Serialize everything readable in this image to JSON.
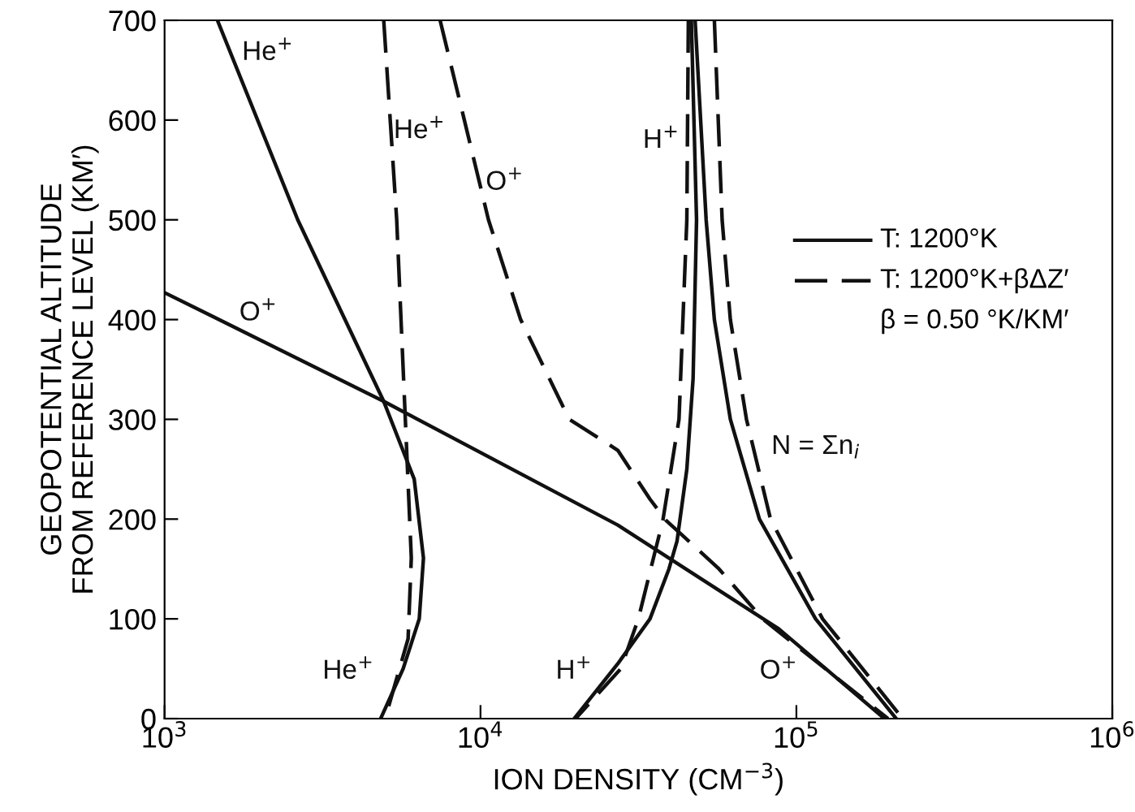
{
  "chart_data": {
    "type": "line",
    "xlabel": "ION DENSITY (CM$^{−3}$)",
    "ylabel": "GEOPOTENTIAL ALTITUDE\nFROM REFERENCE LEVEL (KM′)",
    "log": "x",
    "xlim": [
      1000,
      1000000
    ],
    "xticks": [
      {
        "value": 1000,
        "label": "10$^{3}$"
      },
      {
        "value": 10000,
        "label": "10$^{4}$"
      },
      {
        "value": 100000,
        "label": "10$^{5}$"
      },
      {
        "value": 1000000,
        "label": "10$^{6}$"
      }
    ],
    "ylim": [
      0,
      700
    ],
    "yticks": [
      0,
      100,
      200,
      300,
      400,
      500,
      600,
      700
    ],
    "grid": false,
    "marker": "none",
    "color": "#111111",
    "series": [
      {
        "name": "He$^{+}$",
        "line_style": "solid",
        "x": [
          1470,
          2640,
          4940,
          6170,
          6600,
          6400,
          5690,
          4830
        ],
        "values": [
          700,
          500,
          318,
          240,
          161,
          100,
          50,
          0
        ]
      },
      {
        "name": "He$^{+}$",
        "line_style": "dashed",
        "x": [
          4940,
          5430,
          5750,
          6040,
          5900,
          4990
        ],
        "values": [
          700,
          500,
          318,
          161,
          80,
          0
        ]
      },
      {
        "name": "O$^{+}$",
        "line_style": "solid",
        "x": [
          1000,
          4940,
          27200,
          87900,
          190000
        ],
        "values": [
          427,
          318,
          194,
          90,
          0
        ]
      },
      {
        "name": "O$^{+}$",
        "line_style": "dashed",
        "x": [
          7450,
          8890,
          10600,
          13400,
          19100,
          27200,
          34400,
          38600,
          56900,
          78200,
          195000
        ],
        "values": [
          700,
          600,
          500,
          400,
          300,
          269,
          220,
          199,
          150,
          100,
          0
        ]
      },
      {
        "name": "H$^{+}$",
        "line_style": "solid",
        "x": [
          46500,
          48300,
          47100,
          45000,
          41900,
          39500,
          34400,
          27200,
          19800
        ],
        "values": [
          700,
          500,
          341,
          250,
          178,
          150,
          100,
          55,
          0
        ]
      },
      {
        "name": "H$^{+}$",
        "line_style": "dashed",
        "x": [
          45500,
          45000,
          42500,
          37800,
          31600,
          27800,
          20000
        ],
        "values": [
          700,
          500,
          300,
          199,
          100,
          50,
          0
        ]
      },
      {
        "name": "N = Σn$_{i}$",
        "line_style": "solid",
        "x": [
          47800,
          51800,
          55000,
          61800,
          76400,
          115000,
          207000
        ],
        "values": [
          700,
          500,
          400,
          300,
          200,
          100,
          0
        ]
      },
      {
        "line_style": "dashed",
        "x": [
          55000,
          58200,
          61800,
          69500,
          82800,
          121000,
          217000
        ],
        "values": [
          700,
          500,
          400,
          300,
          200,
          100,
          0
        ]
      }
    ],
    "annotations": [
      "T: 1200°K",
      "T: 1200°K+βΔZ′",
      "β = 0.50 °K/KM′"
    ]
  }
}
